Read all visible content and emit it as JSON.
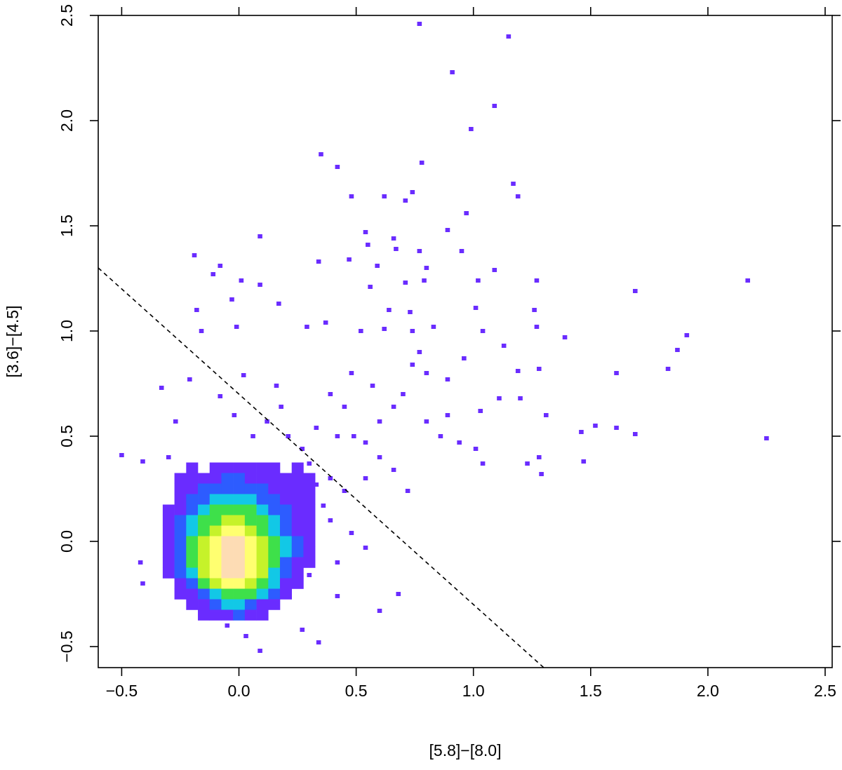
{
  "chart_data": {
    "type": "hist2d",
    "x_label": "[5.8]−[8.0]",
    "y_label": "[3.6]−[4.5]",
    "xlim": [
      -0.6,
      2.53
    ],
    "ylim": [
      -0.6,
      2.5
    ],
    "xticks": [
      {
        "value": -0.5,
        "label": "−0.5"
      },
      {
        "value": 0,
        "label": "0.0"
      },
      0.5,
      {
        "value": 1,
        "label": "1.0"
      },
      1.5,
      {
        "value": 2,
        "label": "2.0"
      },
      2.5
    ],
    "yticks": [
      {
        "value": -0.5,
        "label": "−0.5"
      },
      {
        "value": 0,
        "label": "0.0"
      },
      0.5,
      {
        "value": 1,
        "label": "1.0"
      },
      1.5,
      {
        "value": 2,
        "label": "2.0"
      },
      2.5
    ],
    "x": [
      -0.3,
      -0.25,
      -0.2,
      -0.15,
      -0.1,
      -0.05,
      0,
      0.05,
      0.1,
      0.15,
      0.2,
      0.25,
      0.3
    ],
    "y": [
      0.35,
      0.3,
      0.25,
      0.2,
      0.15,
      0.1,
      0.05,
      0,
      -0.05,
      -0.1,
      -0.15,
      -0.2,
      -0.25,
      -0.3,
      -0.35
    ],
    "counts": [
      [
        null,
        null,
        1,
        null,
        1,
        1,
        2,
        1,
        1,
        2,
        null,
        1,
        null
      ],
      [
        null,
        1,
        1,
        2,
        2,
        3,
        3,
        2,
        2,
        1,
        1,
        1,
        1
      ],
      [
        null,
        1,
        2,
        3,
        4,
        5,
        5,
        4,
        3,
        2,
        2,
        1,
        1
      ],
      [
        null,
        2,
        3,
        5,
        7,
        9,
        9,
        7,
        5,
        3,
        2,
        1,
        1
      ],
      [
        1,
        2,
        4,
        8,
        12,
        15,
        15,
        12,
        8,
        5,
        3,
        2,
        1
      ],
      [
        1,
        3,
        6,
        12,
        20,
        26,
        26,
        20,
        12,
        7,
        4,
        2,
        1
      ],
      [
        1,
        4,
        9,
        18,
        30,
        40,
        40,
        30,
        18,
        10,
        5,
        2,
        1
      ],
      [
        2,
        5,
        12,
        25,
        42,
        56,
        56,
        42,
        25,
        13,
        6,
        3,
        1
      ],
      [
        2,
        5,
        14,
        30,
        52,
        70,
        70,
        52,
        30,
        15,
        6,
        3,
        1
      ],
      [
        1,
        4,
        12,
        30,
        55,
        75,
        75,
        55,
        30,
        14,
        5,
        2,
        1
      ],
      [
        1,
        3,
        8,
        22,
        42,
        60,
        60,
        42,
        22,
        10,
        4,
        2,
        null
      ],
      [
        null,
        2,
        5,
        12,
        25,
        38,
        40,
        28,
        14,
        6,
        2,
        1,
        null
      ],
      [
        null,
        1,
        2,
        5,
        10,
        18,
        20,
        14,
        6,
        3,
        1,
        null,
        null
      ],
      [
        null,
        null,
        1,
        2,
        4,
        8,
        8,
        5,
        2,
        1,
        null,
        null,
        null
      ],
      [
        null,
        null,
        null,
        1,
        1,
        2,
        3,
        2,
        1,
        null,
        null,
        null,
        null
      ]
    ],
    "colormap": {
      "breaks": [
        1,
        3,
        6,
        11,
        21,
        36,
        56
      ],
      "colors": [
        "#6a2cff",
        "#2d5cff",
        "#12c8e6",
        "#3ee04a",
        "#c6f22a",
        "#ffff70",
        "#fddcb4"
      ]
    },
    "points": {
      "color": "#6a2cff",
      "x": [
        -0.5,
        -0.41,
        -0.33,
        -0.21,
        -0.19,
        -0.18,
        -0.16,
        -0.11,
        -0.08,
        0.01,
        -0.03,
        -0.01,
        0.09,
        0.09,
        0.17,
        0.02,
        0.16,
        0.35,
        0.42,
        0.34,
        0.47,
        0.48,
        0.62,
        0.71,
        0.74,
        0.77,
        0.78,
        0.91,
        0.99,
        0.97,
        0.89,
        1.09,
        1.15,
        1.17,
        1.19,
        1.09,
        0.54,
        0.66,
        0.55,
        0.67,
        0.77,
        0.95,
        0.8,
        0.59,
        0.71,
        0.79,
        1.02,
        1.27,
        0.56,
        0.64,
        0.73,
        1.01,
        1.26,
        0.29,
        0.37,
        0.52,
        0.62,
        0.74,
        0.83,
        1.04,
        1.27,
        1.39,
        1.91,
        1.87,
        1.83,
        1.69,
        2.17,
        2.25,
        1.61,
        1.31,
        1.46,
        1.52,
        1.61,
        1.69,
        1.47,
        1.28,
        1.23,
        1.29,
        1.19,
        1.28,
        1.13,
        1.2,
        1.11,
        1.03,
        0.89,
        1.04,
        1.01,
        0.68,
        0.6,
        0.34,
        0.09,
        0.27,
        0.33,
        0.42,
        0.49,
        0.54,
        0.6,
        0.66,
        0.7,
        0.74,
        0.8,
        0.48,
        0.39,
        0.45,
        0.8,
        0.86,
        0.94,
        0.6,
        0.66,
        0.54,
        0.72,
        0.45,
        0.39,
        0.36,
        0.48,
        0.54,
        0.42,
        0.3,
        0.42,
        0.39,
        0.27,
        0.24,
        0.3,
        0.21,
        0.12,
        0.06,
        0.18,
        0.27,
        0.33,
        0.57,
        0.89,
        0.77,
        0.96,
        -0.27,
        -0.3,
        -0.08,
        -0.02,
        -0.42,
        -0.41,
        -0.3,
        -0.05,
        0.03
      ],
      "y": [
        0.41,
        0.38,
        0.73,
        0.77,
        1.36,
        1.1,
        1.0,
        1.27,
        1.31,
        1.24,
        1.15,
        1.02,
        1.45,
        1.22,
        1.13,
        0.79,
        0.74,
        1.84,
        1.78,
        1.33,
        1.34,
        1.64,
        1.64,
        1.62,
        1.66,
        2.46,
        1.8,
        2.23,
        1.96,
        1.56,
        1.48,
        2.07,
        2.4,
        1.7,
        1.64,
        1.29,
        1.47,
        1.44,
        1.41,
        1.39,
        1.38,
        1.38,
        1.3,
        1.31,
        1.23,
        1.24,
        1.24,
        1.24,
        1.21,
        1.1,
        1.09,
        1.11,
        1.1,
        1.02,
        1.04,
        1.0,
        1.01,
        1.0,
        1.02,
        1.0,
        1.02,
        0.97,
        0.98,
        0.91,
        0.82,
        1.19,
        1.24,
        0.49,
        0.8,
        0.6,
        0.52,
        0.55,
        0.54,
        0.51,
        0.38,
        0.4,
        0.37,
        0.32,
        0.81,
        0.82,
        0.93,
        0.68,
        0.68,
        0.62,
        0.6,
        0.37,
        0.44,
        -0.25,
        -0.33,
        -0.48,
        -0.52,
        -0.42,
        0.54,
        0.5,
        0.5,
        0.47,
        0.57,
        0.64,
        0.7,
        0.84,
        0.8,
        0.8,
        0.7,
        0.64,
        0.57,
        0.5,
        0.47,
        0.4,
        0.34,
        0.3,
        0.24,
        0.24,
        0.3,
        0.17,
        0.04,
        -0.03,
        -0.1,
        -0.16,
        -0.26,
        0.1,
        0.04,
        0.24,
        0.37,
        0.5,
        0.57,
        0.5,
        0.64,
        0.44,
        0.27,
        0.74,
        0.77,
        0.9,
        0.87,
        0.57,
        0.4,
        0.69,
        0.6,
        -0.1,
        -0.2,
        -0.16,
        -0.4,
        -0.45
      ]
    },
    "line": {
      "x": [
        -0.6,
        1.3
      ],
      "y": [
        1.3,
        -0.6
      ],
      "color": "#000000",
      "dashed": true
    }
  }
}
